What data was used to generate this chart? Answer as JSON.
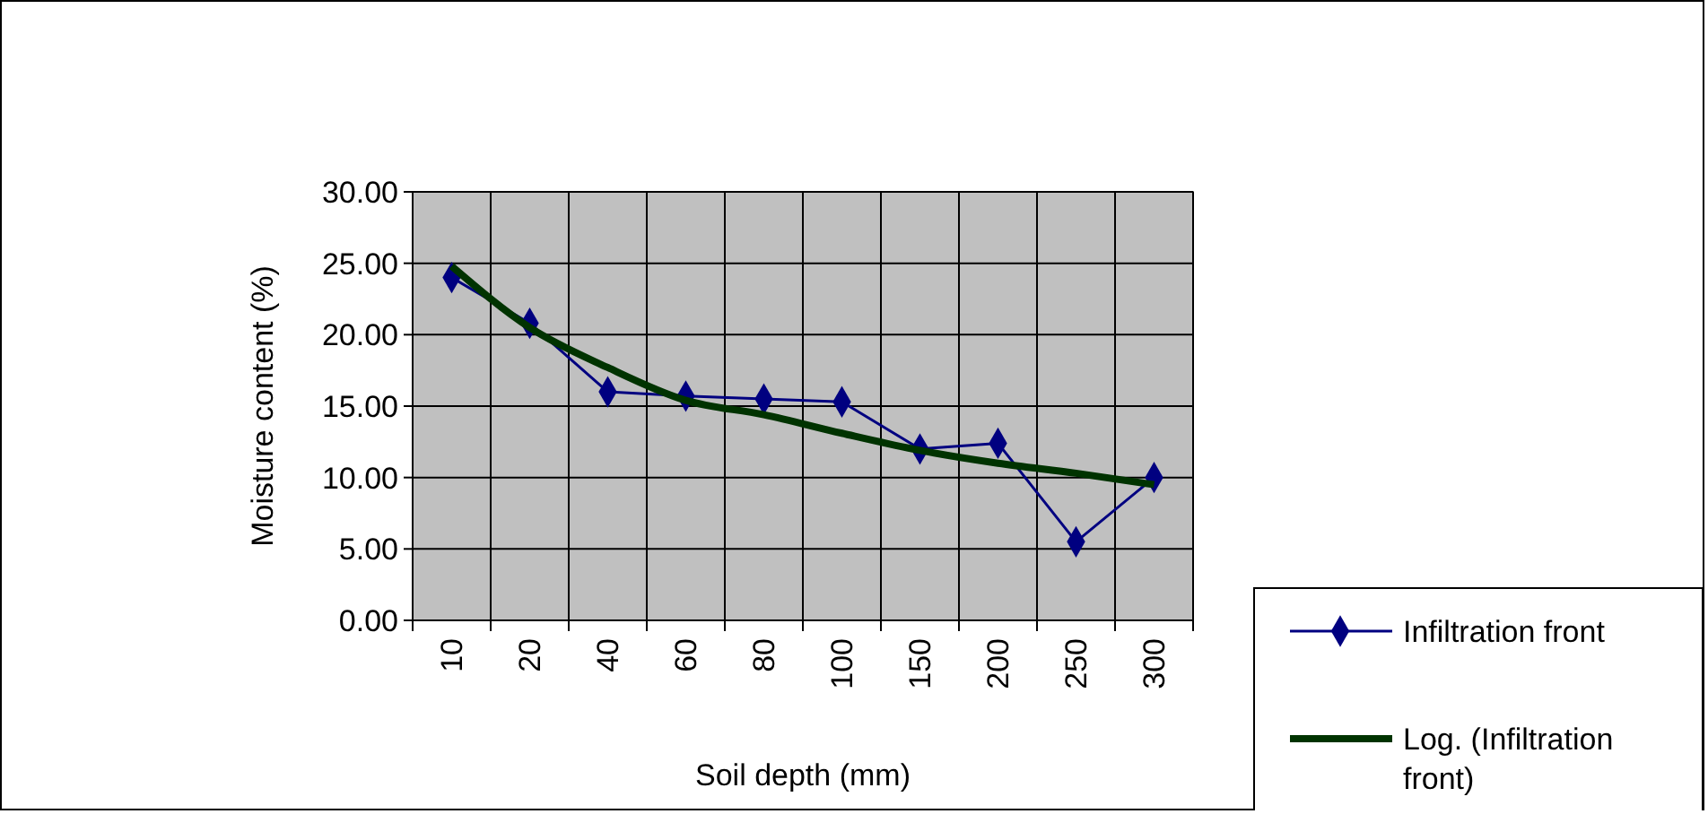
{
  "chart_data": {
    "type": "line",
    "xlabel": "Soil depth (mm)",
    "ylabel": "Moisture content (%)",
    "categories": [
      "10",
      "20",
      "40",
      "60",
      "80",
      "100",
      "150",
      "200",
      "250",
      "300"
    ],
    "series": [
      {
        "name": "Infiltration front",
        "color": "#000080",
        "marker": "diamond",
        "values": [
          24.0,
          20.8,
          16.0,
          15.7,
          15.5,
          15.3,
          12.0,
          12.4,
          5.5,
          10.0
        ]
      },
      {
        "name": "Log. (Infiltration front)",
        "color": "#003300",
        "marker": "none",
        "values": [
          24.8,
          20.5,
          17.7,
          15.4,
          14.4,
          13.1,
          11.9,
          11.0,
          10.3,
          9.5
        ]
      }
    ],
    "ylim": [
      0,
      30
    ],
    "yticks": [
      {
        "value": 0,
        "label": "0.00"
      },
      {
        "value": 5,
        "label": "5.00"
      },
      {
        "value": 10,
        "label": "10.00"
      },
      {
        "value": 15,
        "label": "15.00"
      },
      {
        "value": 20,
        "label": "20.00"
      },
      {
        "value": 25,
        "label": "25.00"
      },
      {
        "value": 30,
        "label": "30.00"
      }
    ],
    "grid": true,
    "legend": "bottom right"
  }
}
